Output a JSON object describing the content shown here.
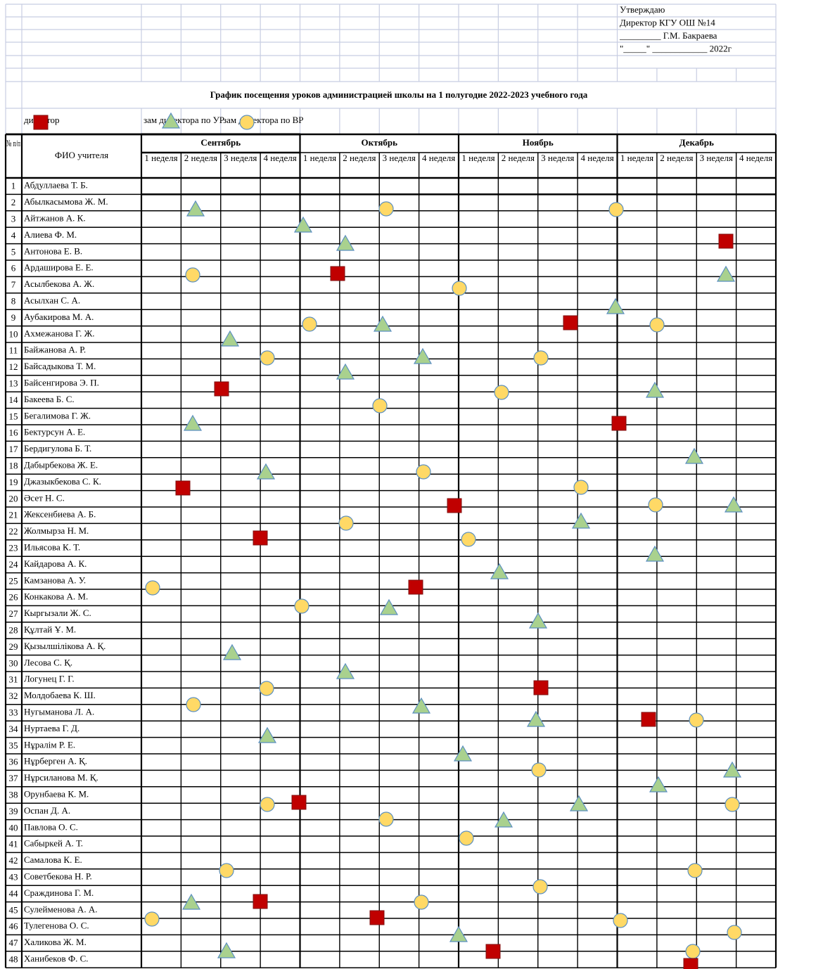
{
  "approval": {
    "lines": [
      "Утверждаю",
      "Директор КГУ ОШ №14",
      "_________ Г.М. Бакраева",
      "\"_____\" ____________ 2022г"
    ]
  },
  "title": "График посещения уроков администрацией школы на 1 полугодие 2022-2023 учебного года",
  "legend": [
    "директор",
    "зам директора по УР",
    "зам директора по ВР"
  ],
  "table": {
    "headers": {
      "number": "№ п/п",
      "name": "ФИО учителя",
      "months": [
        {
          "name": "Сентябрь",
          "weeks": [
            "1 неделя",
            "2 неделя",
            "3 неделя",
            "4 неделя"
          ]
        },
        {
          "name": "Октябрь",
          "weeks": [
            "1 неделя",
            "2 неделя",
            "3 неделя",
            "4 неделя"
          ]
        },
        {
          "name": "Ноябрь",
          "weeks": [
            "1 неделя",
            "2 неделя",
            "3 неделя",
            "4 неделя"
          ]
        },
        {
          "name": "Декабрь",
          "weeks": [
            "1 неделя",
            "2 неделя",
            "3 неделя",
            "4 неделя"
          ]
        }
      ]
    },
    "rows": [
      {
        "number": 1,
        "name": "Абдуллаева Т. Б."
      },
      {
        "number": 2,
        "name": "Абылкасымова Ж. М."
      },
      {
        "number": 3,
        "name": "Айтжанов А. К."
      },
      {
        "number": 4,
        "name": "Алиева Ф. М."
      },
      {
        "number": 5,
        "name": "Антонова Е. В."
      },
      {
        "number": 6,
        "name": "Ардаширова Е. Е."
      },
      {
        "number": 7,
        "name": "Асылбекова А. Ж."
      },
      {
        "number": 8,
        "name": "Асылхан С. А."
      },
      {
        "number": 9,
        "name": "Аубакирова М. А."
      },
      {
        "number": 10,
        "name": "Ахмежанова Г. Ж."
      },
      {
        "number": 11,
        "name": "Байжанова А. Р."
      },
      {
        "number": 12,
        "name": "Байсадыкова Т. М."
      },
      {
        "number": 13,
        "name": "Байсенгирова Э. П."
      },
      {
        "number": 14,
        "name": "Бакеева Б. С."
      },
      {
        "number": 15,
        "name": "Бегалимова Г. Ж."
      },
      {
        "number": 16,
        "name": "Бектурсун А. Е."
      },
      {
        "number": 17,
        "name": "Бердигулова Б. Т."
      },
      {
        "number": 18,
        "name": "Дабырбекова Ж. Е."
      },
      {
        "number": 19,
        "name": "Джазыкбекова С. К."
      },
      {
        "number": 20,
        "name": "Әсет Н. С."
      },
      {
        "number": 21,
        "name": "Жексенбиева А. Б."
      },
      {
        "number": 22,
        "name": "Жолмырза Н. М."
      },
      {
        "number": 23,
        "name": "Ильясова К. Т."
      },
      {
        "number": 24,
        "name": "Кайдарова А. К."
      },
      {
        "number": 25,
        "name": "Камзанова А. У."
      },
      {
        "number": 26,
        "name": "Конкакова А. М."
      },
      {
        "number": 27,
        "name": "Кыргызали Ж. С."
      },
      {
        "number": 28,
        "name": "Құлтай Ұ. М."
      },
      {
        "number": 29,
        "name": "Қызылшілікова А. Қ."
      },
      {
        "number": 30,
        "name": "Лесова С. Қ."
      },
      {
        "number": 31,
        "name": "Логунец Г. Г."
      },
      {
        "number": 32,
        "name": "Молдобаева К. Ш."
      },
      {
        "number": 33,
        "name": "Нугыманова Л. А."
      },
      {
        "number": 34,
        "name": "Нуртаева Г. Д."
      },
      {
        "number": 35,
        "name": "Нұралім Р. Е."
      },
      {
        "number": 36,
        "name": "Нұрберген А. Қ."
      },
      {
        "number": 37,
        "name": "Нұрсиланова М. Қ."
      },
      {
        "number": 38,
        "name": "Орунбаева К. М."
      },
      {
        "number": 39,
        "name": "Оспан Д. А."
      },
      {
        "number": 40,
        "name": "Павлова О. С."
      },
      {
        "number": 41,
        "name": "Сабыркей А. Т."
      },
      {
        "number": 42,
        "name": "Самалова К. Е."
      },
      {
        "number": 43,
        "name": "Советбекова Н. Р."
      },
      {
        "number": 44,
        "name": "Сраждинова Г. М."
      },
      {
        "number": 45,
        "name": "Сулейменова А. А."
      },
      {
        "number": 46,
        "name": "Тулегенова О. С."
      },
      {
        "number": 47,
        "name": "Халикова Ж. М."
      },
      {
        "number": 48,
        "name": "Ханибеков Ф. С."
      }
    ]
  }
}
